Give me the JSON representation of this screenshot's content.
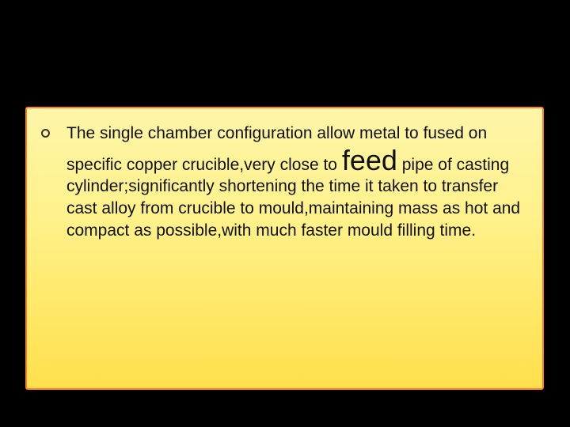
{
  "slide": {
    "background_gradient": [
      "#fff5a8",
      "#fff18a",
      "#ffe96a",
      "#ffdf4c"
    ],
    "border_color": "#ff7f27",
    "page_bg": "#000000",
    "bullet_border": "#333333",
    "text_color": "#111111",
    "body_fontsize": 21,
    "emphasis_fontsize": 36,
    "text_before": "The single chamber configuration allow metal to fused on specific copper crucible,very close to ",
    "emphasis_word": "feed",
    "text_after": " pipe of casting cylinder;significantly shortening the time it taken to transfer cast alloy from crucible to mould,maintaining mass as hot and compact as possible,with much faster mould filling time."
  }
}
